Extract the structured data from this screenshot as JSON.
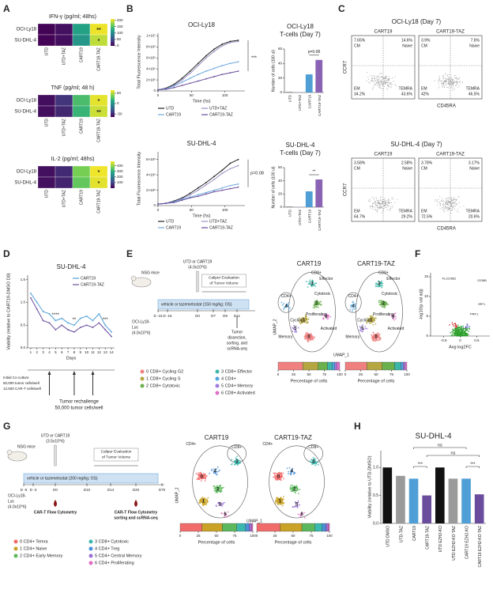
{
  "panel_labels": [
    "A",
    "B",
    "C",
    "D",
    "E",
    "F",
    "G",
    "H"
  ],
  "heatmaps": {
    "rows": [
      "OCI-Ly18",
      "SU-DHL-4"
    ],
    "cols": [
      "UTD",
      "UTD+TAZ",
      "CART19",
      "CART19-TAZ"
    ],
    "maps": [
      {
        "title": "IFN-γ (pg/ml; 48hs)",
        "values": [
          [
            2,
            10,
            120,
            205
          ],
          [
            2,
            8,
            110,
            190
          ]
        ],
        "stars": [
          [
            null,
            null,
            null,
            "**"
          ],
          [
            null,
            null,
            null,
            "*"
          ]
        ],
        "cbar_lim": [
          0,
          210
        ],
        "cbar_ticks": [
          0,
          50,
          100,
          150,
          200
        ]
      },
      {
        "title": "TNF (pg/ml; 48 h)",
        "values": [
          [
            -60,
            -45,
            25,
            60
          ],
          [
            -60,
            -50,
            20,
            55
          ]
        ],
        "stars": [
          [
            null,
            null,
            null,
            "*"
          ],
          [
            null,
            null,
            null,
            "**"
          ]
        ],
        "cbar_lim": [
          -65,
          65
        ],
        "cbar_ticks": [
          -50,
          0,
          50
        ]
      },
      {
        "title": "IL-2 (pg/ml; 48hs)",
        "values": [
          [
            20,
            60,
            380,
            470
          ],
          [
            20,
            50,
            360,
            460
          ]
        ],
        "stars": [
          [
            null,
            null,
            null,
            "*"
          ],
          [
            null,
            null,
            null,
            "*"
          ]
        ],
        "cbar_lim": [
          0,
          480
        ],
        "cbar_ticks": [
          100,
          200,
          300,
          400
        ]
      }
    ]
  },
  "growth": [
    {
      "title": "OCI-Ly18",
      "xlabel": "Time (hs)",
      "ylabel": "Total Fluorescence Intensity",
      "x": [
        0,
        12,
        24,
        36,
        48,
        60,
        72,
        84,
        96,
        108,
        120
      ],
      "xlim": [
        0,
        130
      ],
      "xticks": [
        0,
        50,
        100
      ],
      "ylim": [
        0,
        10500000
      ],
      "yticks": [
        0,
        {
          "value": 2000000,
          "label": "2×10⁶"
        },
        {
          "value": 4000000,
          "label": "4×10⁶"
        },
        {
          "value": 6000000,
          "label": "6×10⁶"
        },
        {
          "value": 8000000,
          "label": "8×10⁶"
        },
        {
          "value": 10000000,
          "label": "1×10⁷"
        }
      ],
      "series": [
        {
          "name": "UTD",
          "color": "#222222",
          "values": [
            200000,
            500000,
            1200000,
            2300000,
            3600000,
            5000000,
            6400000,
            7600000,
            8500000,
            9000000,
            9200000
          ]
        },
        {
          "name": "UTD+TAZ",
          "color": "#9b8fc4",
          "values": [
            200000,
            400000,
            1000000,
            2000000,
            3200000,
            4600000,
            6000000,
            7200000,
            8200000,
            8800000,
            9000000
          ]
        },
        {
          "name": "CART19",
          "color": "#6fa8dc",
          "values": [
            200000,
            400000,
            900000,
            1600000,
            2300000,
            3000000,
            3600000,
            4100000,
            4600000,
            5000000,
            5300000
          ]
        },
        {
          "name": "CART19-TAZ",
          "color": "#6a4c9c",
          "values": [
            200000,
            300000,
            600000,
            1000000,
            1400000,
            1800000,
            2200000,
            2600000,
            3000000,
            3300000,
            3600000
          ]
        }
      ],
      "annotation": "***"
    },
    {
      "title": "SU-DHL-4",
      "xlabel": "Time (hs)",
      "ylabel": "Total Fluorescence Intensity",
      "x": [
        0,
        12,
        24,
        36,
        48,
        60,
        72,
        84,
        96,
        108,
        120
      ],
      "xlim": [
        0,
        130
      ],
      "xticks": [
        0,
        50,
        100
      ],
      "ylim": [
        0,
        7000000
      ],
      "yticks": [
        0,
        {
          "value": 2000000,
          "label": "2×10⁶"
        },
        {
          "value": 4000000,
          "label": "4×10⁶"
        },
        {
          "value": 6000000,
          "label": "6×10⁶"
        }
      ],
      "series": [
        {
          "name": "UTD",
          "color": "#222222",
          "values": [
            200000,
            300000,
            600000,
            1000000,
            1600000,
            2300000,
            3000000,
            3800000,
            4600000,
            5500000,
            6000000
          ]
        },
        {
          "name": "UTD+TAZ",
          "color": "#9b8fc4",
          "values": [
            200000,
            300000,
            500000,
            900000,
            1400000,
            2000000,
            2700000,
            3400000,
            4200000,
            4800000,
            5200000
          ]
        },
        {
          "name": "CART19",
          "color": "#6fa8dc",
          "values": [
            200000,
            300000,
            500000,
            800000,
            1100000,
            1400000,
            1700000,
            2000000,
            2300000,
            2600000,
            2800000
          ]
        },
        {
          "name": "CART19-TAZ",
          "color": "#6a4c9c",
          "values": [
            200000,
            300000,
            400000,
            700000,
            1000000,
            1200000,
            1500000,
            1800000,
            2000000,
            2200000,
            2400000
          ]
        }
      ],
      "annotation": "p=0.08"
    }
  ],
  "tcells": [
    {
      "title": [
        "OCI-Ly18",
        "T-cells (Day 7)"
      ],
      "ylabel": "Number of cells (100 ul)",
      "categories": [
        "UTD",
        "UTD+TAZ",
        "CART19",
        "CART19-TAZ"
      ],
      "values": [
        0.5,
        0.5,
        25,
        45
      ],
      "colors": [
        "#222222",
        "#9b8fc4",
        "#4f9fd6",
        "#8a63b5"
      ],
      "ylim": [
        0,
        60
      ],
      "yticks": [
        0,
        20,
        40,
        60
      ],
      "annotation": "p=0.08"
    },
    {
      "title": [
        "SU-DHL-4",
        "T-cells (Day 7)"
      ],
      "ylabel": "Number of cells (100 ul)",
      "categories": [
        "UTD",
        "UTD+TAZ",
        "CART19",
        "CART19-TAZ"
      ],
      "values": [
        0.5,
        0.5,
        24,
        42
      ],
      "colors": [
        "#222222",
        "#9b8fc4",
        "#4f9fd6",
        "#8a63b5"
      ],
      "ylim": [
        0,
        60
      ],
      "yticks": [
        0,
        20,
        40,
        60
      ],
      "annotation": "**"
    }
  ],
  "flow": [
    {
      "title": "OCI-Ly18 (Day 7)",
      "xlabel": "CD45RA",
      "ylabel": "CCR7",
      "plots": [
        {
          "name": "CART19",
          "quadrants": [
            {
              "name": "CM",
              "value": "7.65%"
            },
            {
              "name": "Naive",
              "value": "14.6%"
            },
            {
              "name": "EM",
              "value": "34.2%"
            },
            {
              "name": "TEMRA",
              "value": "43.6%"
            }
          ]
        },
        {
          "name": "CART19-TAZ",
          "quadrants": [
            {
              "name": "CM",
              "value": "3.9%"
            },
            {
              "name": "Naive",
              "value": "7.6%"
            },
            {
              "name": "EM",
              "value": "42%"
            },
            {
              "name": "TEMRA",
              "value": "46.5%"
            }
          ]
        }
      ]
    },
    {
      "title": "SU-DHL-4 (Day 7)",
      "xlabel": "CD45RA",
      "ylabel": "CCR7",
      "plots": [
        {
          "name": "CART19",
          "quadrants": [
            {
              "name": "CM",
              "value": "3.58%"
            },
            {
              "name": "Naive",
              "value": "2.58%"
            },
            {
              "name": "EM",
              "value": "64.7%"
            },
            {
              "name": "TEMRA",
              "value": "29.2%"
            }
          ]
        },
        {
          "name": "CART19-TAZ",
          "quadrants": [
            {
              "name": "CM",
              "value": "3.78%"
            },
            {
              "name": "Naive",
              "value": "3.17%"
            },
            {
              "name": "EM",
              "value": "72.5%"
            },
            {
              "name": "TEMRA",
              "value": "20.6%"
            }
          ]
        }
      ]
    }
  ],
  "viability": {
    "title": "SU-DHL-4",
    "xlabel": "Days",
    "ylabel": "Viability (relative to CART19-DMSO D0)",
    "x": [
      1,
      2,
      3,
      4,
      5,
      6,
      7,
      8,
      9,
      10,
      11,
      12,
      13,
      14
    ],
    "xlim": [
      0.5,
      14.5
    ],
    "xticks": [
      1,
      2,
      3,
      4,
      5,
      6,
      7,
      8,
      9,
      10,
      11,
      12,
      13,
      14
    ],
    "ylim": [
      0,
      1.6
    ],
    "yticks": [
      {
        "value": 0,
        "label": "0.0"
      },
      {
        "value": 0.5,
        "label": "0.5"
      },
      {
        "value": 1,
        "label": "1.0"
      },
      {
        "value": 1.5,
        "label": "1.5"
      }
    ],
    "series": [
      {
        "name": "CART19",
        "color": "#4f9fd6",
        "values": [
          1.2,
          1.0,
          0.8,
          0.75,
          0.6,
          0.65,
          0.55,
          0.5,
          0.65,
          0.7,
          0.6,
          0.75,
          0.5,
          0.35
        ]
      },
      {
        "name": "CART19-TAZ",
        "color": "#6a4c9c",
        "values": [
          1.1,
          0.85,
          0.6,
          0.55,
          0.4,
          0.5,
          0.4,
          0.35,
          0.45,
          0.5,
          0.45,
          0.55,
          0.4,
          0.25
        ]
      }
    ],
    "stars": [
      {
        "day": 5,
        "text": "****"
      },
      {
        "day": 8,
        "text": "**"
      },
      {
        "day": 13,
        "text": "***"
      }
    ],
    "initial": [
      "Initial Co-culture",
      "50,000 tumor cells/well",
      "12,500 CAR-T cells/well"
    ],
    "rechallenge": [
      "Tumor rechallenge",
      "50,000 tumor cells/well"
    ],
    "rechallenge_days": [
      4,
      8,
      11
    ]
  },
  "schematic_E": {
    "mouse": "NSG mice",
    "injection": [
      "UTD or CART19",
      "(4.0x10^6)"
    ],
    "caliper": [
      "Caliper Evaluation",
      "of Tumor Volume"
    ],
    "treatment": "vehicle or tazemetostat (150 mg/kg; OS)",
    "days": [
      "D -16",
      "D -15",
      "D0",
      "D7",
      "D9",
      "D11"
    ],
    "tumor": [
      "OCI-Ly18-",
      "Luc",
      "(4.0x10^6)"
    ],
    "endpoint": [
      "Tumor",
      "dissection,",
      "sorting, and",
      "scRNA-seq"
    ]
  },
  "umap_E": {
    "titles": [
      "CART19",
      "CART19-TAZ"
    ],
    "axes": [
      "UMAP_2",
      "UMAP_1"
    ],
    "regions": [
      "CD8+",
      "CD4+"
    ],
    "states": [
      "Cycling",
      "Cytotoxic",
      "Effector",
      "Proliferating",
      "Activated",
      "Memory"
    ],
    "cluster_ids": [
      0,
      1,
      2,
      3,
      4,
      5,
      6
    ],
    "legend": [
      "0 CD8+ Cycling G2",
      "1 CD8+ Cycling S",
      "2 CD8+ Cytotoxic",
      "3 CD8+ Effector",
      "4 CD4+",
      "5 CD4+ Memory",
      "6 CD8+ Activated"
    ],
    "colors": [
      "#f08080",
      "#b5a642",
      "#6ab04c",
      "#3cb6a8",
      "#4fa3e0",
      "#a07be0",
      "#e070c8"
    ],
    "bars": [
      [
        40,
        25,
        15,
        8,
        4,
        3,
        5
      ],
      [
        35,
        25,
        20,
        10,
        4,
        3,
        3
      ]
    ],
    "xlabel": "Percentage of cells",
    "xticks": [
      0,
      25,
      50,
      75,
      100
    ]
  },
  "volcano": {
    "xlabel": "Avg log2FC",
    "ylabel": "-log10(p val adj)",
    "xlim": [
      -0.9,
      0.9
    ],
    "xticks": [
      -0.5,
      0,
      0.5
    ],
    "ylim": [
      0,
      16
    ],
    "yticks": [
      0,
      5,
      10,
      15
    ],
    "genes": [
      "FLJ22662",
      "GZMB",
      "IRF1",
      "PRF1"
    ]
  },
  "schematic_G": {
    "mouse": "NSG mice",
    "injection": [
      "UTD or CART19",
      "(3.5x10^6)"
    ],
    "caliper": [
      "Caliper Evaluation",
      "of Tumor Volume"
    ],
    "treatment": "vehicle or tazemetostat (200 mg/kg; OS)",
    "days": [
      "D -5",
      "D -3",
      "D0",
      "D10",
      "D14",
      "D20",
      "D70"
    ],
    "tumor": [
      "OCI-Ly18-",
      "Luc",
      "(4.0x10^6)"
    ],
    "flow1": [
      "CAR-T Flow Cytometry"
    ],
    "flow2": [
      "CAR-T Flow Cytometry",
      "sorting and scRNA-seq"
    ]
  },
  "umap_G": {
    "titles": [
      "CART19",
      "CART19-TAZ"
    ],
    "axes": [
      "UMAP_2",
      "UMAP_1"
    ],
    "regions": [
      "CD4+",
      "CD8+"
    ],
    "cluster_ids": [
      0,
      1,
      2,
      3,
      4,
      5,
      6
    ],
    "legend": [
      "0 CD4+ Temra",
      "1 CD4+ Naive",
      "2 CD4+ Early Memory",
      "3 CD8+ Cytotoxic",
      "4 CD4+ Treg",
      "5 CD4+ Central Memory",
      "6 CD4+ Proliferating"
    ],
    "colors": [
      "#f26b6b",
      "#c9a227",
      "#5cb85c",
      "#3bb8b0",
      "#4a90d9",
      "#9b6fd6",
      "#e06cc4"
    ],
    "bars": [
      [
        30,
        28,
        20,
        12,
        5,
        3,
        2
      ],
      [
        32,
        30,
        18,
        10,
        5,
        3,
        2
      ]
    ],
    "xlabel": "Percentage of cells",
    "xticks": [
      0,
      25,
      50,
      75,
      100
    ]
  },
  "knockout": {
    "title": "SU-DHL-4",
    "ylabel": "Viability (relative to UTD-DMSO)",
    "categories": [
      "UTD DMSO",
      "UTD-TAZ",
      "CART19",
      "CART19-TAZ",
      "UTD EZH2-KO",
      "UTD EZH2-KO TAZ",
      "CART19 EZH2-KO",
      "CART19 EZH2-KO TAZ"
    ],
    "values": [
      1.0,
      0.85,
      0.8,
      0.5,
      1.0,
      0.8,
      0.8,
      0.52
    ],
    "colors": [
      "#111111",
      "#9a9a9a",
      "#4f9fd6",
      "#6a4c9c",
      "#111111",
      "#9a9a9a",
      "#4f9fd6",
      "#6a4c9c"
    ],
    "ylim": [
      0,
      1.3
    ],
    "yticks": [
      {
        "value": 0,
        "label": "0.0"
      },
      {
        "value": 0.5,
        "label": "0.5"
      },
      {
        "value": 1,
        "label": "1.0"
      }
    ],
    "comparisons": [
      {
        "from": 2,
        "to": 3,
        "text": "***"
      },
      {
        "from": 3,
        "to": 7,
        "text": "ns"
      },
      {
        "from": 2,
        "to": 6,
        "text": "ns"
      },
      {
        "from": 6,
        "to": 7,
        "text": "***"
      }
    ]
  }
}
